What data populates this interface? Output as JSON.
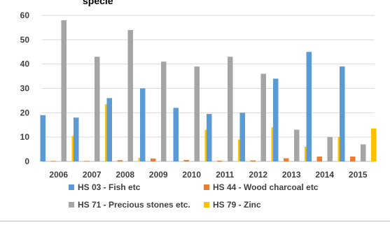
{
  "title_fragment": "specie",
  "colors": {
    "fish": "#5b9bd5",
    "wood": "#ed7d31",
    "stones": "#a5a5a5",
    "zinc": "#ffc000",
    "grid": "#d9d9d9",
    "axis_text": "#404040"
  },
  "chart_data": {
    "type": "bar",
    "categories": [
      "2006",
      "2007",
      "2008",
      "2009",
      "2010",
      "2011",
      "2012",
      "2013",
      "2014",
      "2015"
    ],
    "ylim": [
      0,
      60
    ],
    "yticks": [
      "0",
      "10",
      "20",
      "30",
      "40",
      "50",
      "60"
    ],
    "grid": true,
    "legend": "bottom",
    "series": [
      {
        "name": "HS 03 - Fish etc",
        "values": [
          19,
          18,
          26,
          30,
          22,
          19.5,
          20,
          34,
          45,
          39
        ]
      },
      {
        "name": "HS 44 - Wood charcoal etc",
        "values": [
          0.2,
          0.2,
          0.5,
          1.2,
          0.6,
          0.3,
          0.4,
          1.3,
          2,
          2
        ]
      },
      {
        "name": "HS 71 - Precious stones etc.",
        "values": [
          58,
          43,
          54,
          41,
          39,
          43,
          36,
          13,
          10,
          7
        ]
      },
      {
        "name": "HS 79 - Zinc",
        "values": [
          10.5,
          23.5,
          1.5,
          0,
          13,
          9,
          14,
          6,
          10,
          13.5
        ]
      }
    ]
  }
}
